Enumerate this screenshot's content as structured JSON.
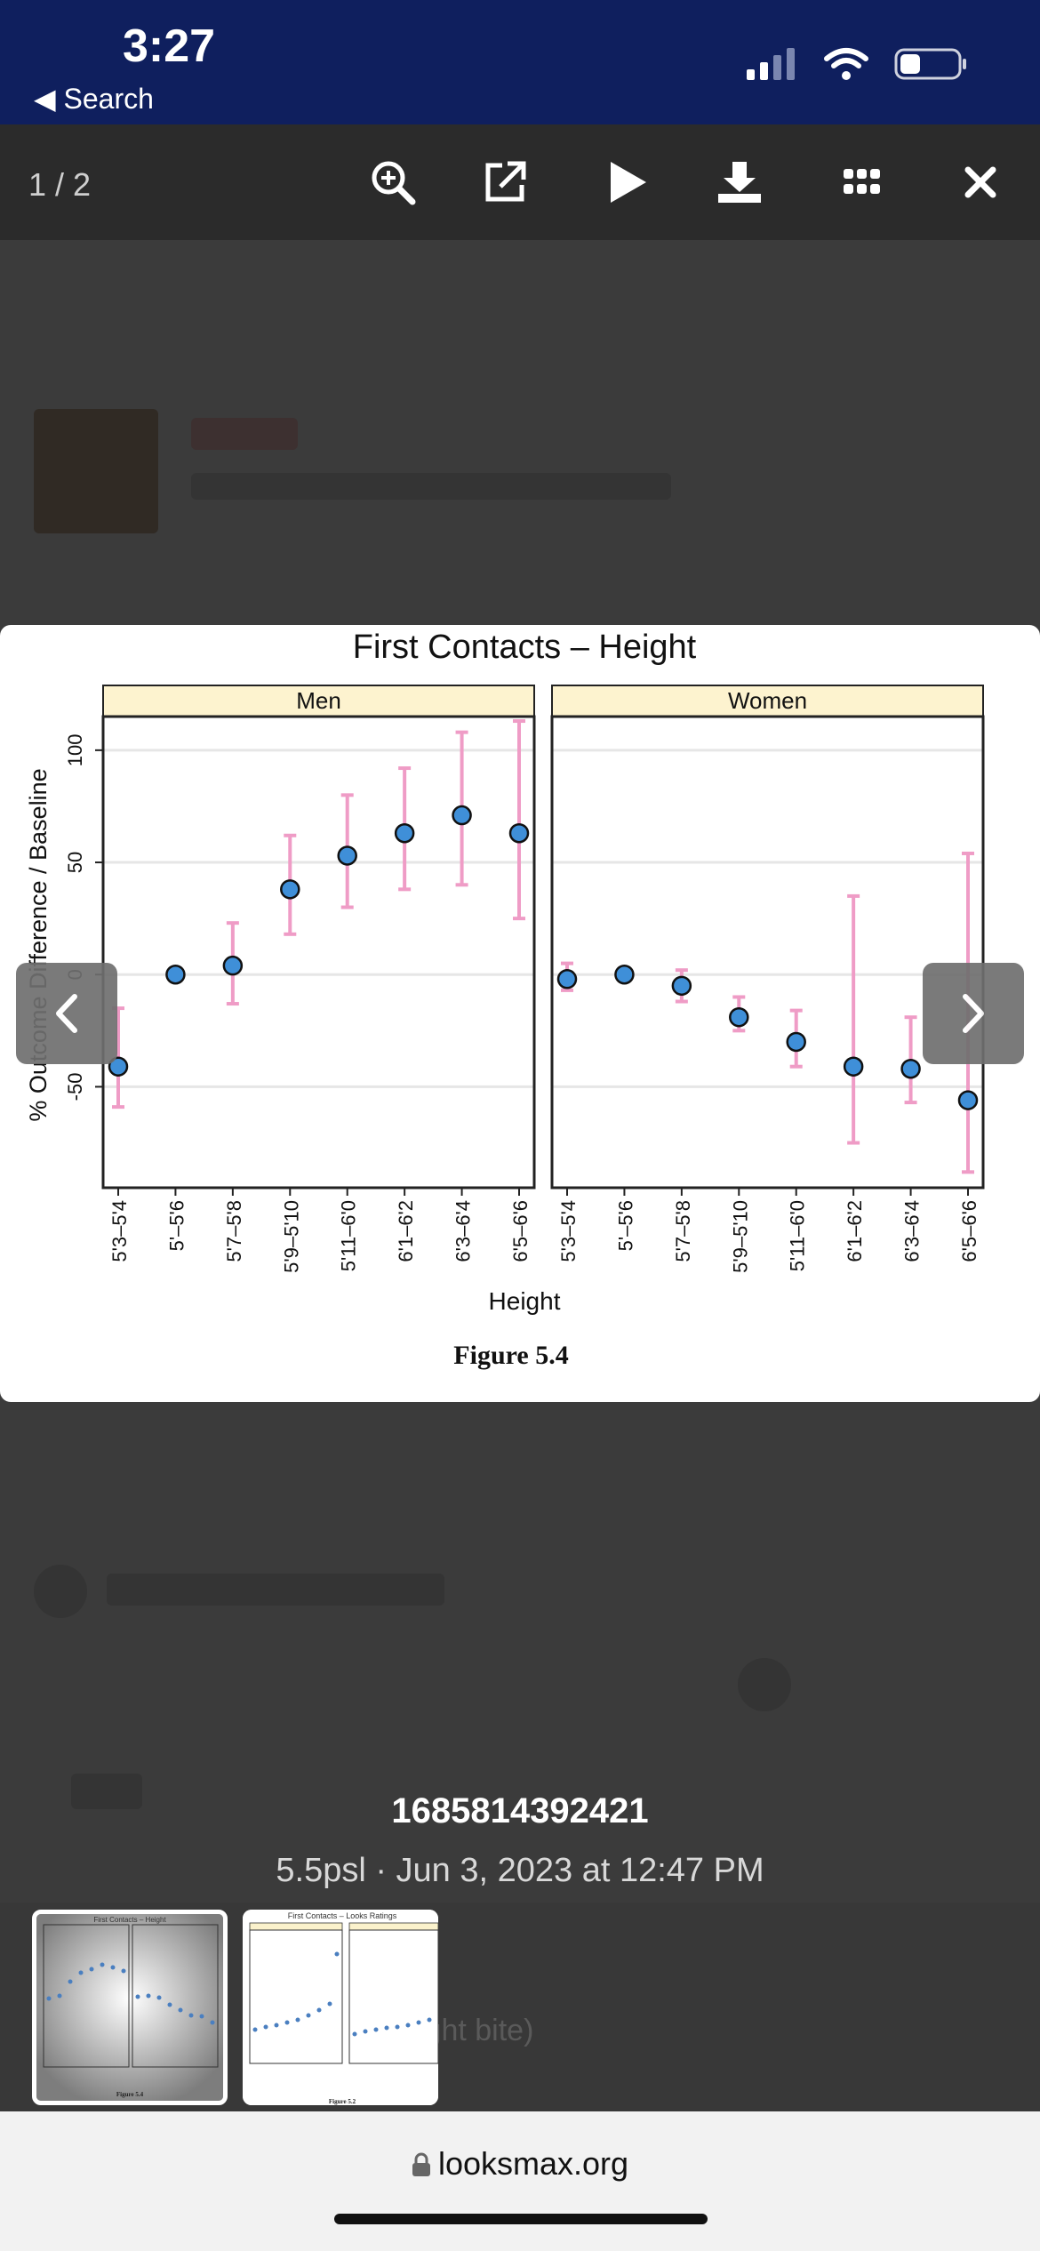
{
  "status": {
    "time": "3:27",
    "back_label": "◀ Search"
  },
  "viewer": {
    "counter": "1 / 2",
    "toolbar": [
      "zoom-in-icon",
      "open-external-icon",
      "play-icon",
      "download-icon",
      "grid-icon",
      "close-icon"
    ]
  },
  "image_caption": {
    "title": "1685814392421",
    "subtitle": "5.5psl · Jun 3, 2023 at 12:47 PM"
  },
  "background_text": "ight bite)",
  "thumbnails": [
    {
      "label": "Figure 5.4",
      "title": "First Contacts – Height",
      "active": true
    },
    {
      "label": "Figure 5.2",
      "title": "First Contacts – Looks Ratings",
      "active": false
    }
  ],
  "url_bar": {
    "domain": "looksmax.org"
  },
  "chart_data": {
    "type": "scatter",
    "title": "First Contacts – Height",
    "ylabel": "% Outcome Difference / Baseline",
    "xlabel": "Height",
    "figure_label": "Figure 5.4",
    "ylim": [
      -95,
      115
    ],
    "yticks": [
      -50,
      0,
      50,
      100
    ],
    "grid": true,
    "categories": [
      "5'3–5'4",
      "5'–5'6",
      "5'7–5'8",
      "5'9–5'10",
      "5'11–6'0",
      "6'1–6'2",
      "6'3–6'4",
      "6'5–6'6"
    ],
    "panels": [
      {
        "name": "Men",
        "values": [
          -41,
          0,
          4,
          38,
          53,
          63,
          71,
          63
        ],
        "lower": [
          -59,
          0,
          -13,
          18,
          30,
          38,
          40,
          25
        ],
        "upper": [
          -15,
          0,
          23,
          62,
          80,
          92,
          108,
          113
        ]
      },
      {
        "name": "Women",
        "values": [
          -2,
          0,
          -5,
          -19,
          -30,
          -41,
          -42,
          -56
        ],
        "lower": [
          -7,
          0,
          -12,
          -25,
          -41,
          -75,
          -57,
          -88
        ],
        "upper": [
          5,
          0,
          2,
          -10,
          -16,
          35,
          -19,
          54
        ]
      }
    ]
  }
}
